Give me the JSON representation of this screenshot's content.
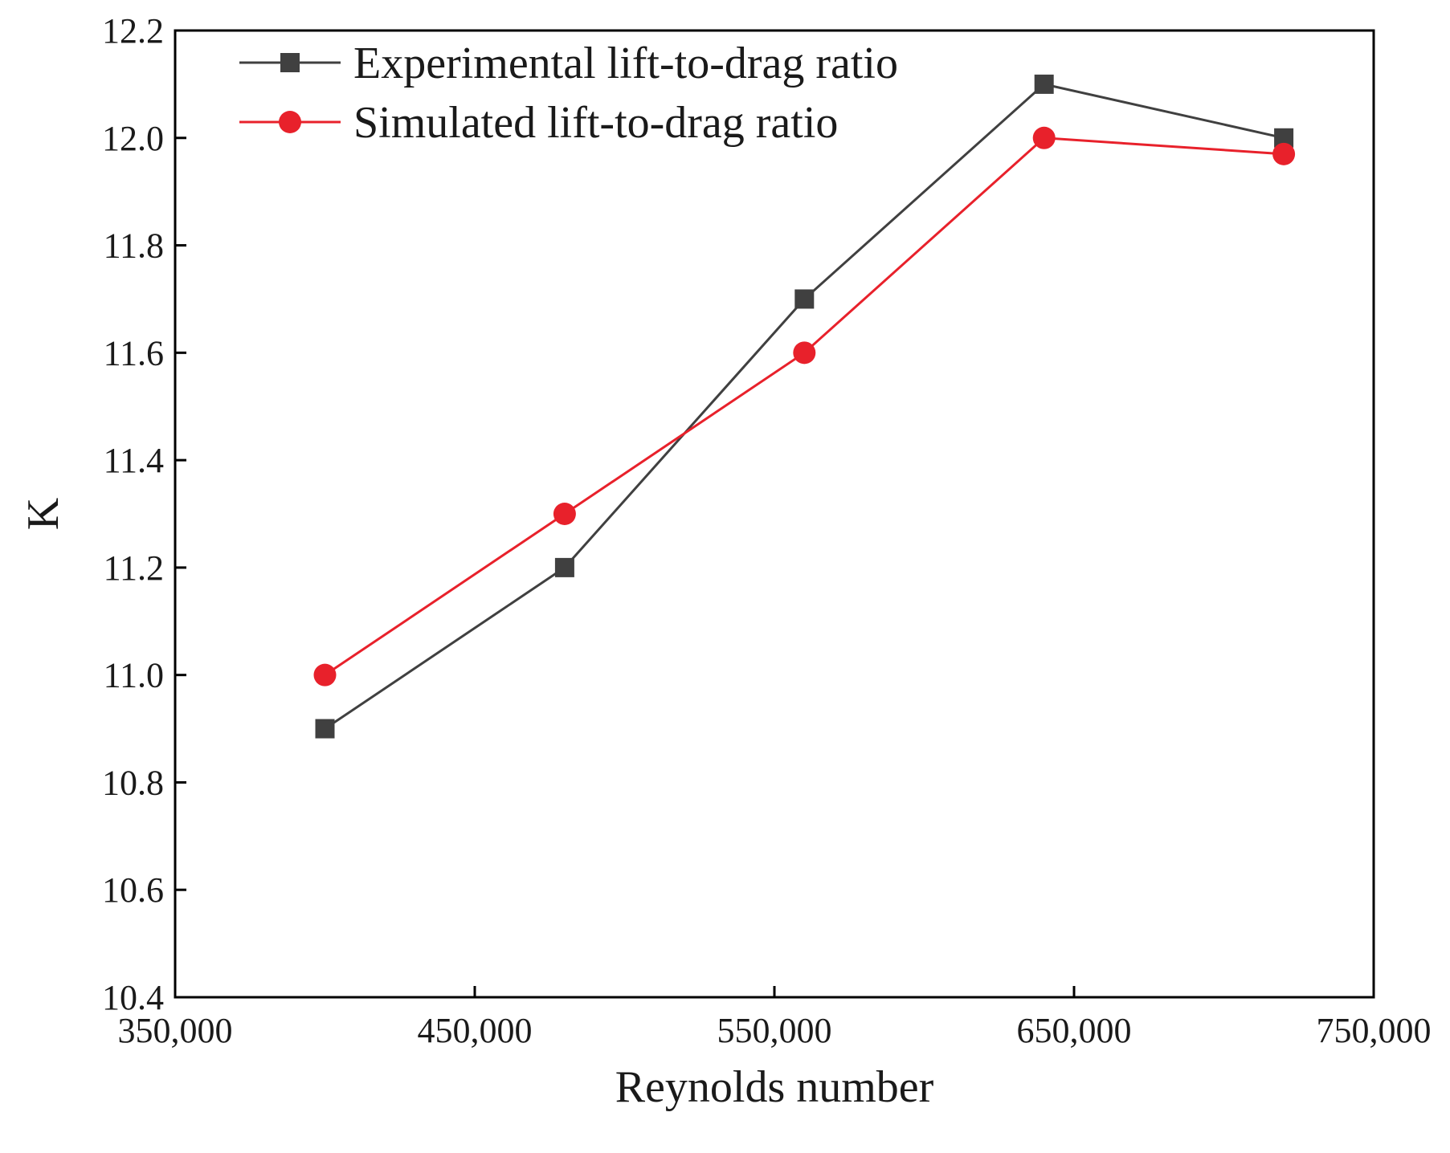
{
  "chart_data": {
    "type": "line",
    "title": "",
    "xlabel": "Reynolds number",
    "ylabel": "K",
    "xlim": [
      350000,
      750000
    ],
    "ylim": [
      10.4,
      12.2
    ],
    "x_ticks": [
      350000,
      450000,
      550000,
      650000,
      750000
    ],
    "x_tick_labels": [
      "350,000",
      "450,000",
      "550,000",
      "650,000",
      "750,000"
    ],
    "y_ticks": [
      10.4,
      10.6,
      10.8,
      11.0,
      11.2,
      11.4,
      11.6,
      11.8,
      12.0,
      12.2
    ],
    "y_tick_labels": [
      "10.4",
      "10.6",
      "10.8",
      "11.0",
      "11.2",
      "11.4",
      "11.6",
      "11.8",
      "12.0",
      "12.2"
    ],
    "grid": false,
    "legend_position": "top-left",
    "x": [
      400000,
      480000,
      560000,
      640000,
      720000
    ],
    "series": [
      {
        "name": "Experimental lift-to-drag ratio",
        "marker": "square",
        "color": "#404040",
        "values": [
          10.9,
          11.2,
          11.7,
          12.1,
          12.0
        ]
      },
      {
        "name": "Simulated lift-to-drag ratio",
        "marker": "circle",
        "color": "#e8212b",
        "values": [
          11.0,
          11.3,
          11.6,
          12.0,
          11.97
        ]
      }
    ]
  }
}
